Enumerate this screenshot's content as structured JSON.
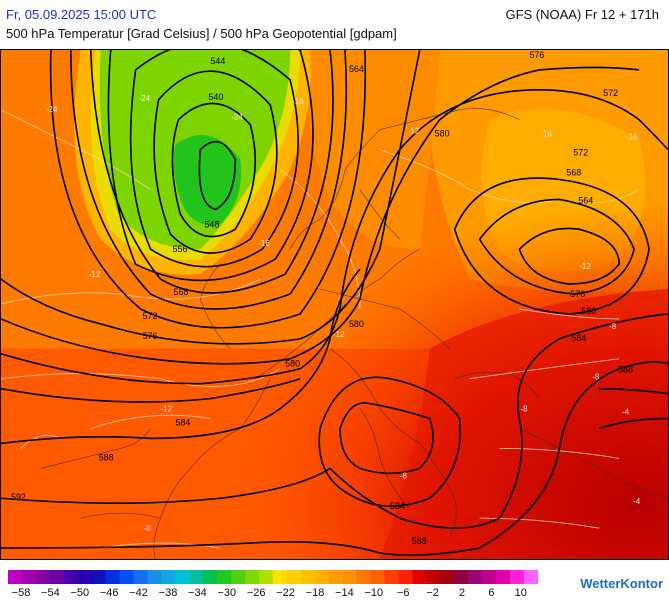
{
  "header": {
    "datetime": "Fr, 05.09.2025 15:00 UTC",
    "model": "GFS (NOAA) Fr 12 + 171h",
    "subtitle": "500 hPa Temperatur [Grad Celsius] / 500 hPa Geopotential [gdpam]"
  },
  "map": {
    "geopotential_labels": [
      "544",
      "540",
      "548",
      "556",
      "564",
      "568",
      "572",
      "576",
      "580",
      "584",
      "588",
      "592",
      "568",
      "572",
      "564",
      "576",
      "580",
      "584",
      "588",
      "580",
      "584",
      "588",
      "580",
      "572",
      "576"
    ],
    "temperature_labels": [
      "-24",
      "-24",
      "-24",
      "-18",
      "-16",
      "-12",
      "-12",
      "-12",
      "-16",
      "-16",
      "-12",
      "-12",
      "-8",
      "-8",
      "-8",
      "-4",
      "-4",
      "-8",
      "-8"
    ]
  },
  "colorscale": {
    "colors": [
      "#c000c0",
      "#a000b0",
      "#8800a8",
      "#6a00a6",
      "#4a00a8",
      "#2a00b0",
      "#1010c0",
      "#0030e0",
      "#0050f0",
      "#1070f0",
      "#1890e8",
      "#10a8e0",
      "#00c0d8",
      "#00c0a0",
      "#00c050",
      "#20c820",
      "#50d010",
      "#80d800",
      "#b0e000",
      "#ffe000",
      "#ffd000",
      "#ffc000",
      "#ffb000",
      "#ffa000",
      "#ff9000",
      "#ff7800",
      "#ff6000",
      "#ff4000",
      "#ff2000",
      "#e00000",
      "#c00000",
      "#a00010",
      "#900040",
      "#a00070",
      "#c00090",
      "#e000b0",
      "#ff20e0",
      "#ff60ff"
    ],
    "labels": [
      "−58",
      "−54",
      "−50",
      "−46",
      "−42",
      "−38",
      "−34",
      "−30",
      "−26",
      "−22",
      "−18",
      "−14",
      "−10",
      "−6",
      "−2",
      "2",
      "6",
      "10"
    ]
  },
  "brand": "WetterKontor"
}
